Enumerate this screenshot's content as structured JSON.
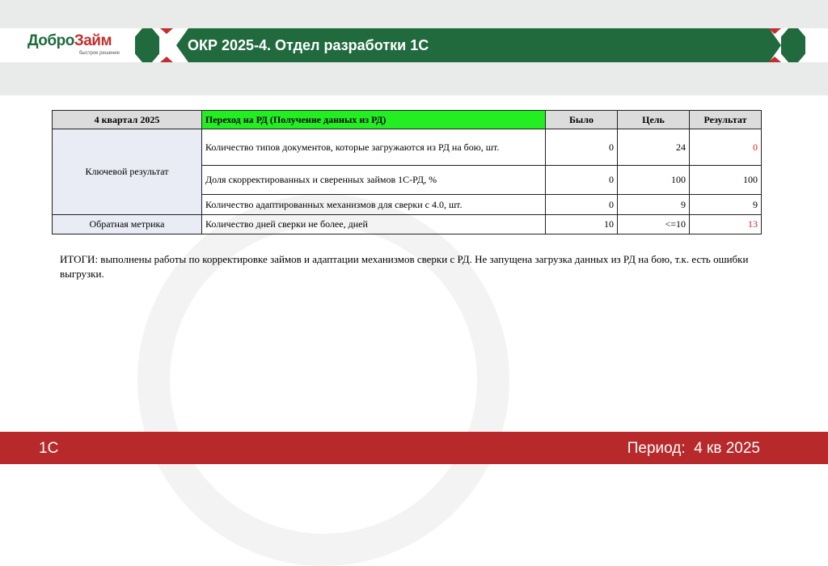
{
  "header": {
    "logo_text_1": "Добро",
    "logo_text_2": "Займ",
    "logo_tagline": "быстрое решение",
    "title": "ОКР 2025-4. Отдел разработки 1С"
  },
  "table": {
    "headers": [
      "4 квартал 2025",
      "Переход на РД (Получение данных из РД)",
      "Было",
      "Цель",
      "Результат"
    ],
    "group1": "Ключевой результат",
    "group2": "Обратная метрика",
    "rows": [
      {
        "metric": "Количество типов документов, которые загружаются из РД на бою, шт.",
        "was": "0",
        "goal": "24",
        "result": "0"
      },
      {
        "metric": "Доля скорректированных и сверенных займов 1С-РД, %",
        "was": "0",
        "goal": "100",
        "result": "100"
      },
      {
        "metric": "Количество адаптированных механизмов для сверки с 4.0, шт.",
        "was": "0",
        "goal": "9",
        "result": "9"
      },
      {
        "metric": "Количество дней сверки не более, дней",
        "was": "10",
        "goal": "<=10",
        "result": "13"
      }
    ]
  },
  "summary": "ИТОГИ: выполнены работы по корректировке займов и адаптации механизмов сверки с РД. Не запущена загрузка данных из РД на бою, т.к. есть ошибки выгрузки.",
  "footer": {
    "left": "1С",
    "right": "Период:  4 кв 2025"
  },
  "colors": {
    "brand_green": "#216a3e",
    "brand_red": "#b7292a",
    "highlight": "#22ee22",
    "bad_result": "#e02020"
  }
}
